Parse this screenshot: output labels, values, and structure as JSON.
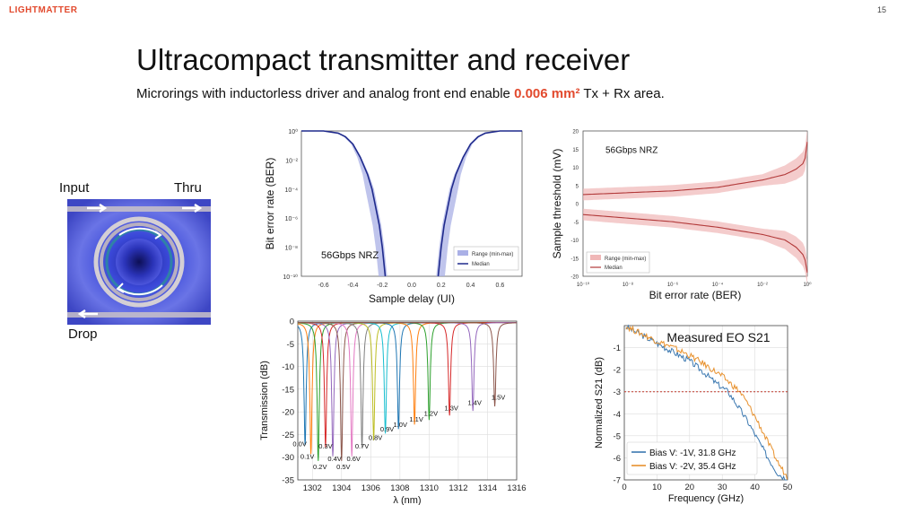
{
  "header": {
    "logo": "LIGHTMATTER",
    "page_number": "15"
  },
  "title": "Ultracompact transmitter and receiver",
  "subtitle": {
    "before": "Microrings with inductorless driver and analog front end enable ",
    "highlight": "0.006 mm²",
    "after": " Tx + Rx area."
  },
  "ring_figure": {
    "input_label": "Input",
    "thru_label": "Thru",
    "drop_label": "Drop"
  },
  "colors": {
    "accent": "#e24a2e",
    "navy": "#1f2a8c",
    "band_blue": "#aab0e6",
    "red_line": "#b23a3a",
    "band_red": "#f0b7b7"
  },
  "chart_data": [
    {
      "type": "line",
      "title": "",
      "annotation": "56Gbps NRZ",
      "xlabel": "Sample delay (UI)",
      "ylabel": "Bit error rate (BER)",
      "xlim": [
        -0.75,
        0.75
      ],
      "ylim_log10": [
        -10,
        0
      ],
      "xticks": [
        "-0.6",
        "-0.4",
        "-0.2",
        "0.0",
        "0.2",
        "0.4",
        "0.6"
      ],
      "yticks": [
        "10⁰",
        "10⁻²",
        "10⁻⁴",
        "10⁻⁶",
        "10⁻⁸",
        "10⁻¹⁰"
      ],
      "legend": [
        "Range (min-max)",
        "Median"
      ],
      "legend_position": "bottom-right",
      "series": [
        {
          "name": "Median left",
          "x": [
            -0.75,
            -0.6,
            -0.5,
            -0.45,
            -0.4,
            -0.35,
            -0.3,
            -0.27,
            -0.25,
            -0.22,
            -0.2,
            -0.18
          ],
          "log10_ber": [
            0,
            0,
            -0.15,
            -0.4,
            -0.9,
            -1.8,
            -3.0,
            -4.0,
            -5.0,
            -6.5,
            -8.0,
            -10
          ]
        },
        {
          "name": "Median right",
          "x": [
            0.18,
            0.2,
            0.22,
            0.25,
            0.27,
            0.3,
            0.35,
            0.4,
            0.45,
            0.5,
            0.6,
            0.75
          ],
          "log10_ber": [
            -10,
            -8.0,
            -6.5,
            -5.0,
            -4.0,
            -3.0,
            -1.8,
            -0.9,
            -0.4,
            -0.15,
            0,
            0
          ]
        }
      ]
    },
    {
      "type": "line",
      "title": "",
      "annotation": "56Gbps NRZ",
      "xlabel": "Bit error rate (BER)",
      "ylabel": "Sample threshold (mV)",
      "xlim_log10": [
        -10,
        0
      ],
      "ylim": [
        -20,
        20
      ],
      "xticks": [
        "10⁻¹⁰",
        "10⁻⁸",
        "10⁻⁶",
        "10⁻⁴",
        "10⁻²",
        "10⁰"
      ],
      "yticks": [
        "20",
        "15",
        "10",
        "5",
        "0",
        "-5",
        "-10",
        "-15",
        "-20"
      ],
      "legend": [
        "Range (min-max)",
        "Median"
      ],
      "legend_position": "bottom-left",
      "series": [
        {
          "name": "Upper",
          "log10_ber": [
            -10,
            -8,
            -6,
            -4,
            -2,
            -1,
            -0.5,
            -0.2,
            -0.1,
            0
          ],
          "mv": [
            2.5,
            3.0,
            3.5,
            4.5,
            6.5,
            8.0,
            9.5,
            11,
            12.5,
            17
          ]
        },
        {
          "name": "Lower",
          "log10_ber": [
            -10,
            -8,
            -6,
            -4,
            -2,
            -1,
            -0.5,
            -0.2,
            -0.1,
            0
          ],
          "mv": [
            -3.0,
            -4.0,
            -5.0,
            -6.5,
            -8.5,
            -10,
            -12,
            -14,
            -15.5,
            -19
          ]
        }
      ]
    },
    {
      "type": "line",
      "title": "",
      "xlabel": "λ (nm)",
      "ylabel": "Transmission (dB)",
      "xlim": [
        1301,
        1316
      ],
      "ylim": [
        -35,
        0
      ],
      "xticks": [
        "1302",
        "1304",
        "1306",
        "1308",
        "1310",
        "1312",
        "1314",
        "1316"
      ],
      "yticks": [
        "0",
        "-5",
        "-10",
        "-15",
        "-20",
        "-25",
        "-30",
        "-35"
      ],
      "grid": true,
      "resonances": [
        {
          "voltage": "0.0V",
          "wavelength": 1301.5,
          "depth": -27
        },
        {
          "voltage": "0.1V",
          "wavelength": 1301.9,
          "depth": -29
        },
        {
          "voltage": "0.2V",
          "wavelength": 1302.4,
          "depth": -30.5
        },
        {
          "voltage": "0.3V",
          "wavelength": 1302.9,
          "depth": -27.5
        },
        {
          "voltage": "0.4V",
          "wavelength": 1303.4,
          "depth": -29.5
        },
        {
          "voltage": "0.5V",
          "wavelength": 1304.0,
          "depth": -30.5
        },
        {
          "voltage": "0.6V",
          "wavelength": 1304.7,
          "depth": -29.5
        },
        {
          "voltage": "0.7V",
          "wavelength": 1305.4,
          "depth": -27.5
        },
        {
          "voltage": "0.8V",
          "wavelength": 1306.2,
          "depth": -26
        },
        {
          "voltage": "0.9V",
          "wavelength": 1307.0,
          "depth": -24.5
        },
        {
          "voltage": "1.0V",
          "wavelength": 1307.9,
          "depth": -23.5
        },
        {
          "voltage": "1.1V",
          "wavelength": 1309.0,
          "depth": -22.5
        },
        {
          "voltage": "1.2V",
          "wavelength": 1310.0,
          "depth": -21.5
        },
        {
          "voltage": "1.3V",
          "wavelength": 1311.4,
          "depth": -20.5
        },
        {
          "voltage": "1.4V",
          "wavelength": 1313.0,
          "depth": -19.5
        },
        {
          "voltage": "1.5V",
          "wavelength": 1314.5,
          "depth": -18.5
        }
      ]
    },
    {
      "type": "line",
      "title": "Measured EO S21",
      "xlabel": "Frequency (GHz)",
      "ylabel": "Normalized S21 (dB)",
      "xlim": [
        0,
        50
      ],
      "ylim": [
        -7,
        0
      ],
      "xticks": [
        "0",
        "10",
        "20",
        "30",
        "40",
        "50"
      ],
      "yticks": [
        "-1",
        "-2",
        "-3",
        "-4",
        "-5",
        "-6",
        "-7"
      ],
      "grid": true,
      "reference_line": {
        "y": -3,
        "color": "#c0392b",
        "style": "dotted"
      },
      "legend_position": "bottom-left",
      "series": [
        {
          "name": "Bias V: -1V, 31.8 GHz",
          "color": "#3b78b0",
          "x": [
            0,
            5,
            10,
            15,
            20,
            25,
            28,
            31.8,
            35,
            38,
            41,
            44,
            47,
            50
          ],
          "y": [
            0,
            -0.4,
            -0.8,
            -1.2,
            -1.6,
            -2.2,
            -2.6,
            -3.0,
            -3.7,
            -4.4,
            -5.2,
            -6.0,
            -6.7,
            -7.0
          ]
        },
        {
          "name": "Bias V: -2V, 35.4 GHz",
          "color": "#e8912d",
          "x": [
            0,
            5,
            10,
            15,
            20,
            25,
            30,
            35.4,
            38,
            41,
            44,
            47,
            50
          ],
          "y": [
            0,
            -0.35,
            -0.7,
            -1.0,
            -1.35,
            -1.8,
            -2.3,
            -3.0,
            -3.6,
            -4.4,
            -5.3,
            -6.2,
            -6.9
          ]
        }
      ]
    }
  ]
}
